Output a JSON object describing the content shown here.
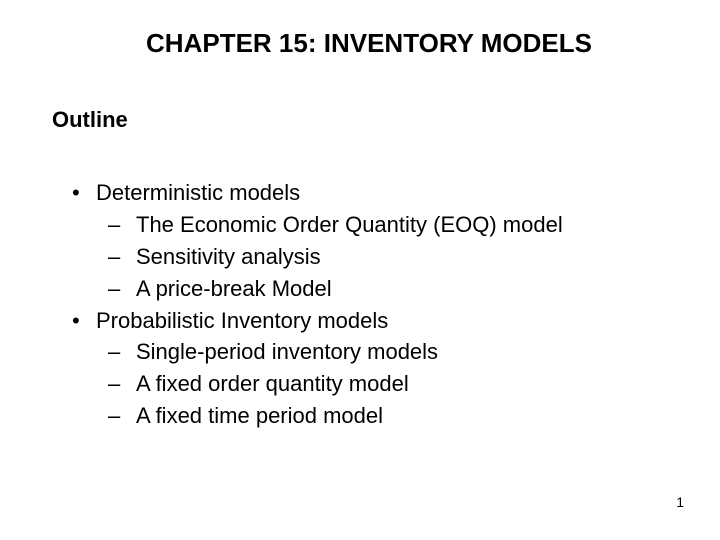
{
  "page": {
    "title": "CHAPTER 15: INVENTORY MODELS",
    "outline_label": "Outline",
    "items": [
      {
        "level": 1,
        "marker": "•",
        "text": "Deterministic models"
      },
      {
        "level": 2,
        "marker": "–",
        "text": "The Economic Order Quantity (EOQ) model"
      },
      {
        "level": 2,
        "marker": "–",
        "text": "Sensitivity analysis"
      },
      {
        "level": 2,
        "marker": "–",
        "text": "A price-break Model"
      },
      {
        "level": 1,
        "marker": "•",
        "text": "Probabilistic Inventory models"
      },
      {
        "level": 2,
        "marker": "–",
        "text": "Single-period inventory models"
      },
      {
        "level": 2,
        "marker": "–",
        "text": "A fixed order quantity model"
      },
      {
        "level": 2,
        "marker": "–",
        "text": "A fixed time period model"
      }
    ],
    "page_number": "1"
  },
  "style": {
    "background_color": "#ffffff",
    "text_color": "#000000",
    "title_fontsize": 26,
    "outline_label_fontsize": 22,
    "body_fontsize": 22,
    "pagenum_fontsize": 14,
    "font_family": "Arial"
  }
}
